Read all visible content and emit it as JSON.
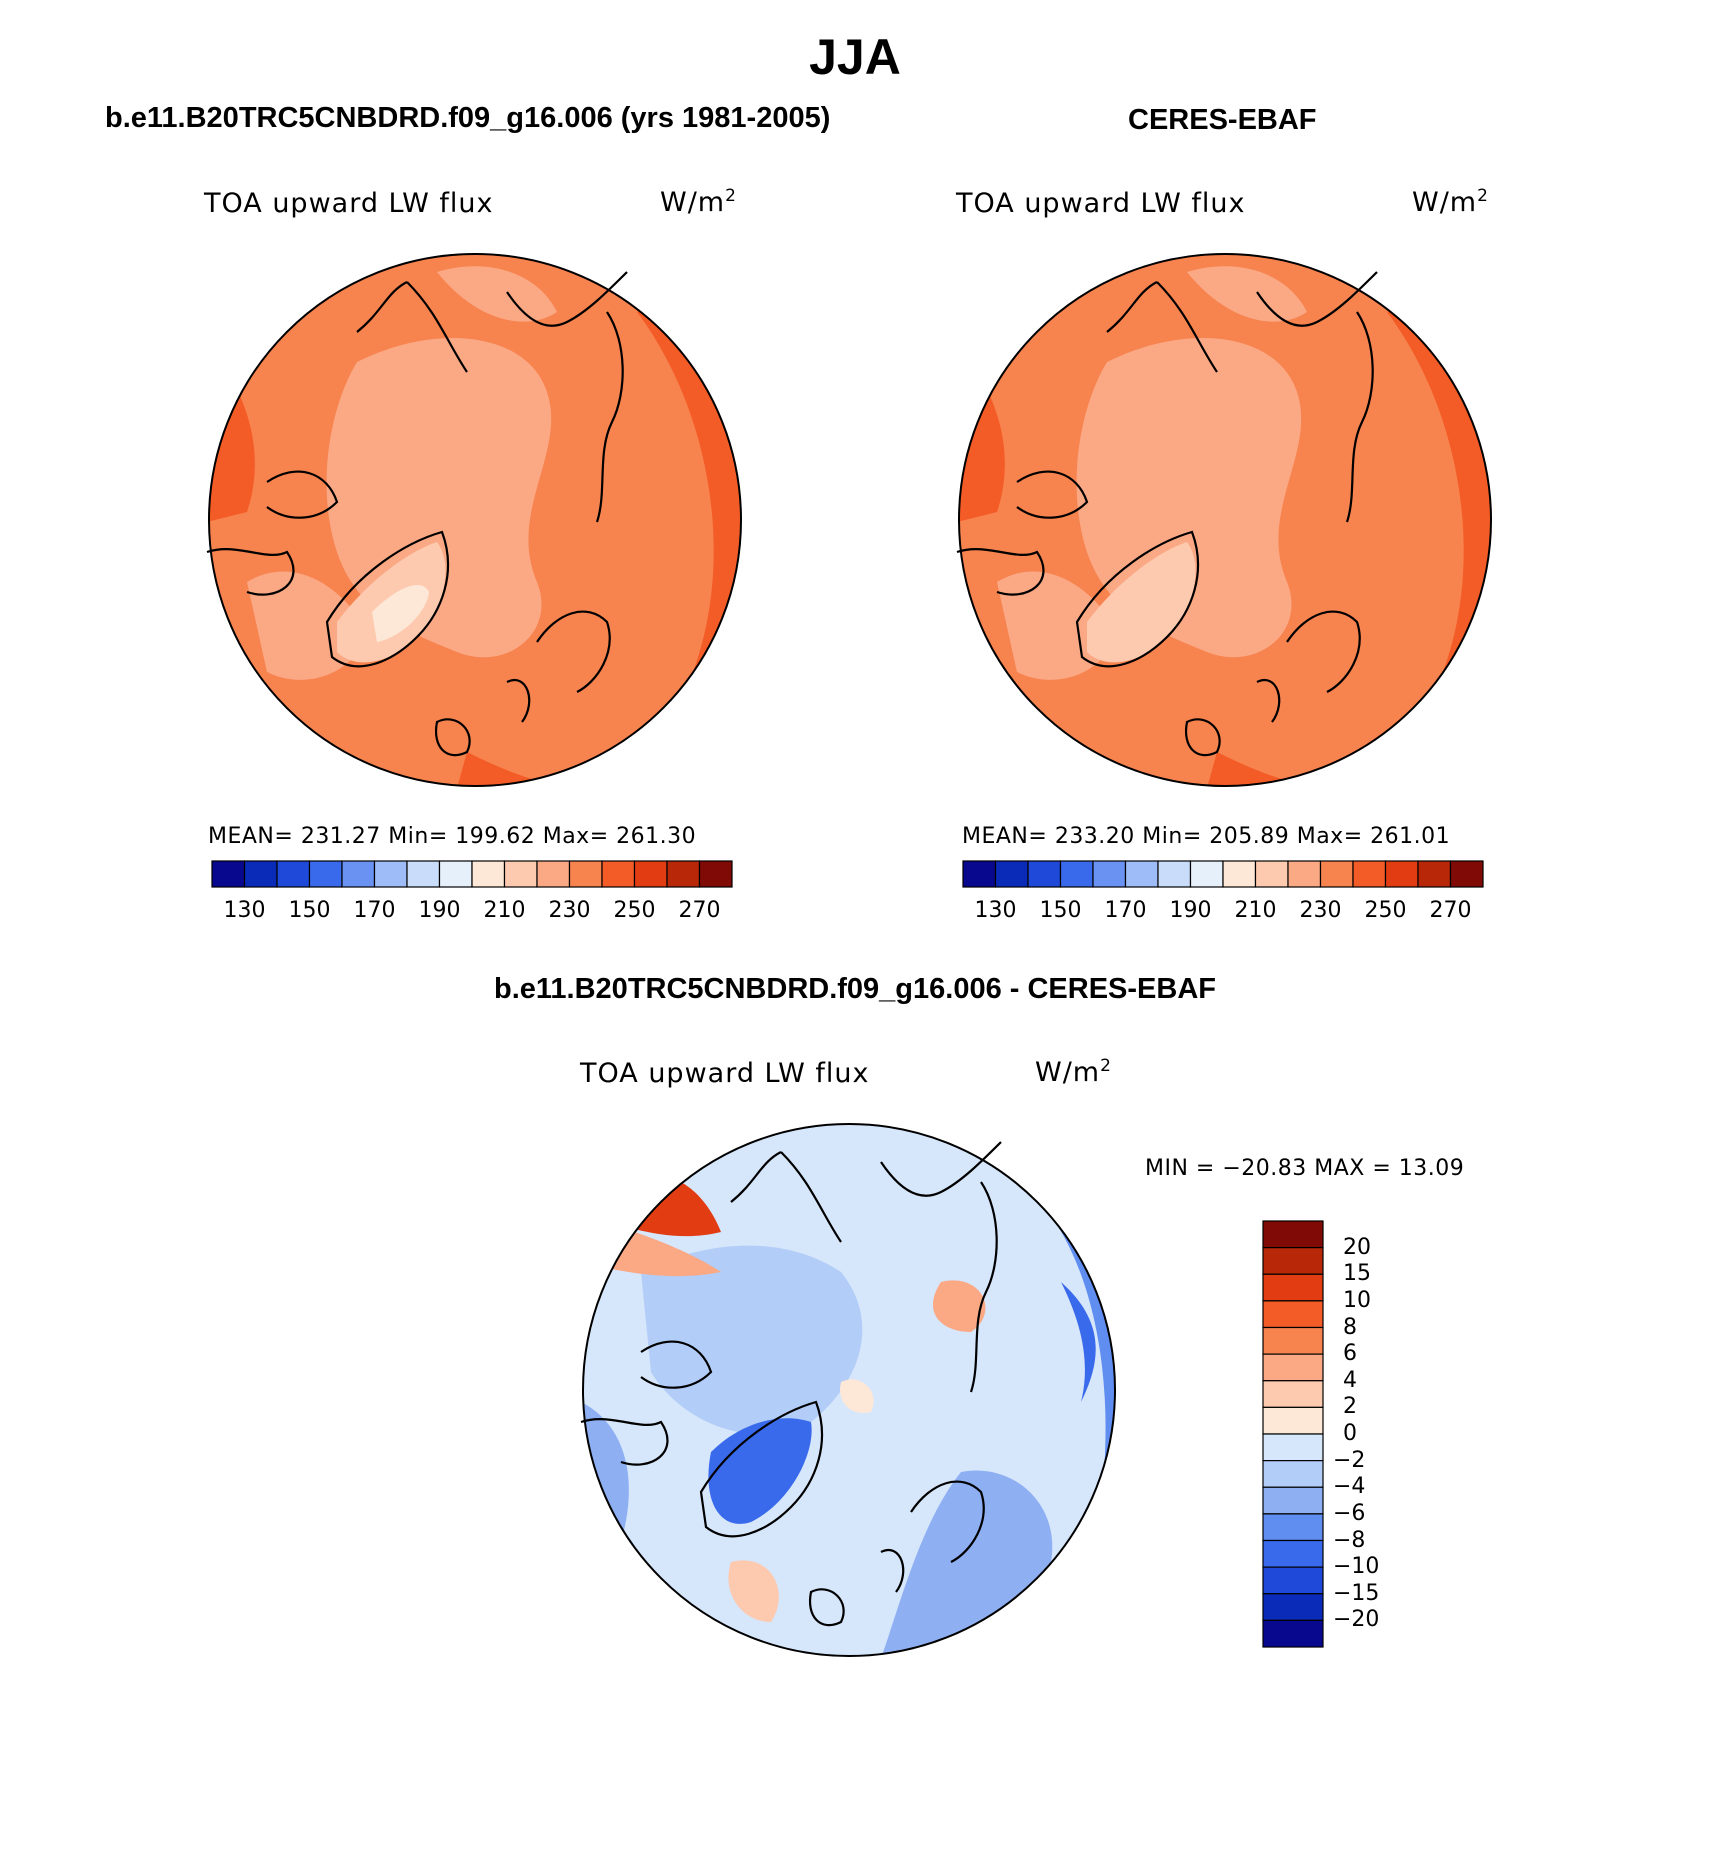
{
  "title": "JJA",
  "panels": [
    {
      "title": "b.e11.B20TRC5CNBDRD.f09_g16.006 (yrs 1981-2005)",
      "variable": "TOA upward LW flux",
      "units_base": "W/m",
      "units_exp": "2",
      "stats": "MEAN= 231.27   Min= 199.62   Max= 261.30",
      "colorbar": {
        "colors": [
          "#08088f",
          "#0a2bb8",
          "#1f4ad9",
          "#3a6aec",
          "#6a92f2",
          "#9ebcf7",
          "#c9dcf9",
          "#e6f0fb",
          "#fde8d8",
          "#fdcab0",
          "#fba985",
          "#f7834f",
          "#f45c27",
          "#e23c12",
          "#b82708",
          "#7f0a06"
        ],
        "ticks": [
          "130",
          "150",
          "170",
          "190",
          "210",
          "230",
          "250",
          "270"
        ]
      }
    },
    {
      "title": "CERES-EBAF",
      "variable": "TOA upward LW flux",
      "units_base": "W/m",
      "units_exp": "2",
      "stats": "MEAN= 233.20   Min= 205.89   Max= 261.01",
      "colorbar": {
        "colors": [
          "#08088f",
          "#0a2bb8",
          "#1f4ad9",
          "#3a6aec",
          "#6a92f2",
          "#9ebcf7",
          "#c9dcf9",
          "#e6f0fb",
          "#fde8d8",
          "#fdcab0",
          "#fba985",
          "#f7834f",
          "#f45c27",
          "#e23c12",
          "#b82708",
          "#7f0a06"
        ],
        "ticks": [
          "130",
          "150",
          "170",
          "190",
          "210",
          "230",
          "250",
          "270"
        ]
      }
    },
    {
      "title": "b.e11.B20TRC5CNBDRD.f09_g16.006 - CERES-EBAF",
      "variable": "TOA upward LW flux",
      "units_base": "W/m",
      "units_exp": "2",
      "stats": "MIN = −20.83 MAX =   13.09",
      "colorbar": {
        "colors": [
          "#7f0a06",
          "#b82708",
          "#e23c12",
          "#f45c27",
          "#f7834f",
          "#fba985",
          "#fdcab0",
          "#fde8d8",
          "#d6e6fb",
          "#b2cdf7",
          "#8eb0f3",
          "#5f8df0",
          "#3a6aec",
          "#1f4ad9",
          "#0a2bb8",
          "#08088f"
        ],
        "ticks": [
          "20",
          "15",
          "10",
          "8",
          "6",
          "4",
          "2",
          "0",
          "−2",
          "−4",
          "−6",
          "−8",
          "−10",
          "−15",
          "−20"
        ]
      }
    }
  ]
}
